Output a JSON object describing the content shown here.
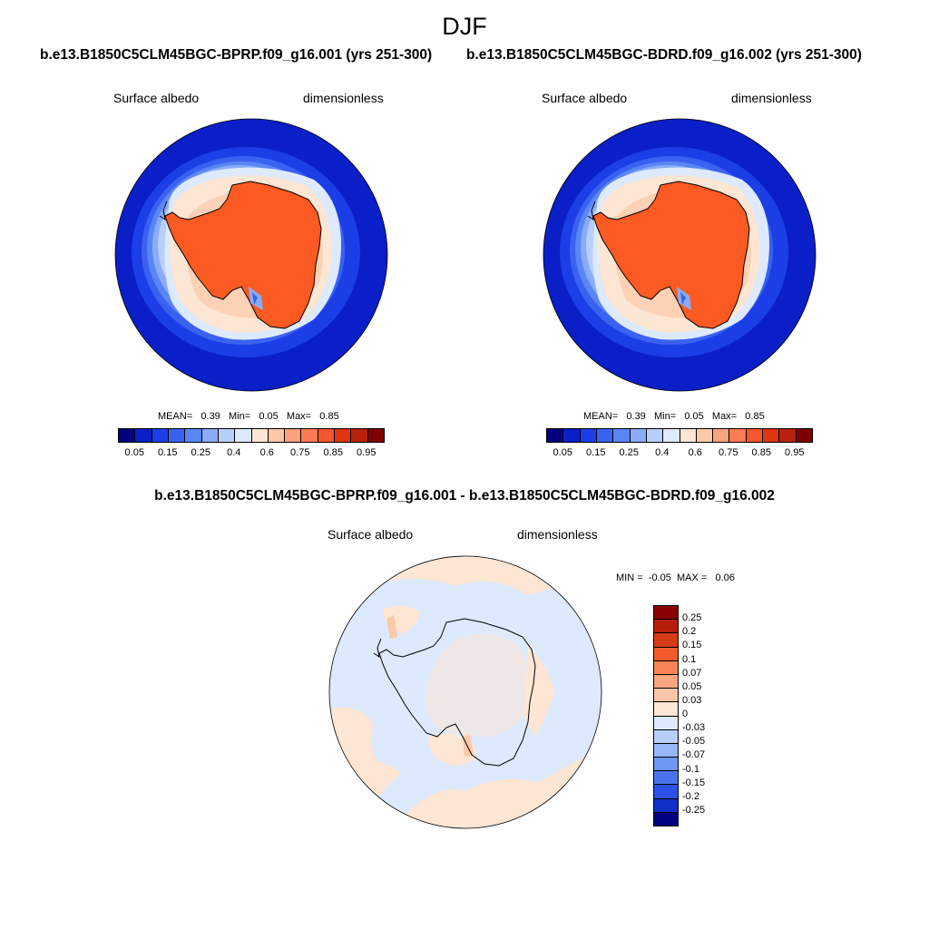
{
  "header": {
    "title": "DJF"
  },
  "panels": [
    {
      "case_title": "b.e13.B1850C5CLM45BGC-BPRP.f09_g16.001 (yrs 251-300)",
      "left_label": "Surface albedo",
      "right_label": "dimensionless",
      "stats": {
        "mean_label": "MEAN=",
        "mean": "0.39",
        "min_label": "Min=",
        "min": "0.05",
        "max_label": "Max=",
        "max": "0.85"
      }
    },
    {
      "case_title": "b.e13.B1850C5CLM45BGC-BDRD.f09_g16.002 (yrs 251-300)",
      "left_label": "Surface albedo",
      "right_label": "dimensionless",
      "stats": {
        "mean_label": "MEAN=",
        "mean": "0.39",
        "min_label": "Min=",
        "min": "0.05",
        "max_label": "Max=",
        "max": "0.85"
      }
    }
  ],
  "colorbar": {
    "colors": [
      "#000080",
      "#0a1fc8",
      "#1c3ee6",
      "#3a62f0",
      "#5a86f5",
      "#8aacf8",
      "#b9cffb",
      "#dde9fd",
      "#fde6d3",
      "#fcc8a8",
      "#fca27c",
      "#fb7c52",
      "#f4562d",
      "#de3512",
      "#b8220c",
      "#7f0000"
    ],
    "labels": [
      "0.05",
      "0.15",
      "0.25",
      "0.4",
      "0.6",
      "0.75",
      "0.85",
      "0.95"
    ]
  },
  "difference": {
    "title": "b.e13.B1850C5CLM45BGC-BPRP.f09_g16.001 - b.e13.B1850C5CLM45BGC-BDRD.f09_g16.002",
    "left_label": "Surface albedo",
    "right_label": "dimensionless",
    "stats": {
      "min_label": "MIN =",
      "min": "-0.05",
      "max_label": "MAX =",
      "max": "0.06"
    },
    "colorbar_colors": [
      "#8b0000",
      "#b81c0a",
      "#d63a16",
      "#f05a2c",
      "#f78456",
      "#f9a582",
      "#fbc5a8",
      "#fde6d3",
      "#dde9fd",
      "#b9cffb",
      "#96b6f8",
      "#6e96f3",
      "#4a74ee",
      "#2a52e6",
      "#1230c8",
      "#000080"
    ],
    "colorbar_labels": [
      "0.25",
      "0.2",
      "0.15",
      "0.1",
      "0.07",
      "0.05",
      "0.03",
      "0",
      "-0.03",
      "-0.05",
      "-0.07",
      "-0.1",
      "-0.15",
      "-0.2",
      "-0.25"
    ]
  },
  "map_colors": {
    "ocean_deep": "#0a1fc8",
    "ocean_mid": "#1c3ee6",
    "ocean_1": "#3a62f0",
    "ocean_2": "#5a86f5",
    "ocean_3": "#8aacf8",
    "ocean_4": "#b9cffb",
    "ice_edge": "#dde9fd",
    "pack_ice": "#fde6d3",
    "pack_ice2": "#fcc8a8",
    "antarctica": "#fb5a22",
    "diff_neg": "#dde9fd",
    "diff_pos": "#fde6d3",
    "diff_pos2": "#fcc8a8"
  }
}
